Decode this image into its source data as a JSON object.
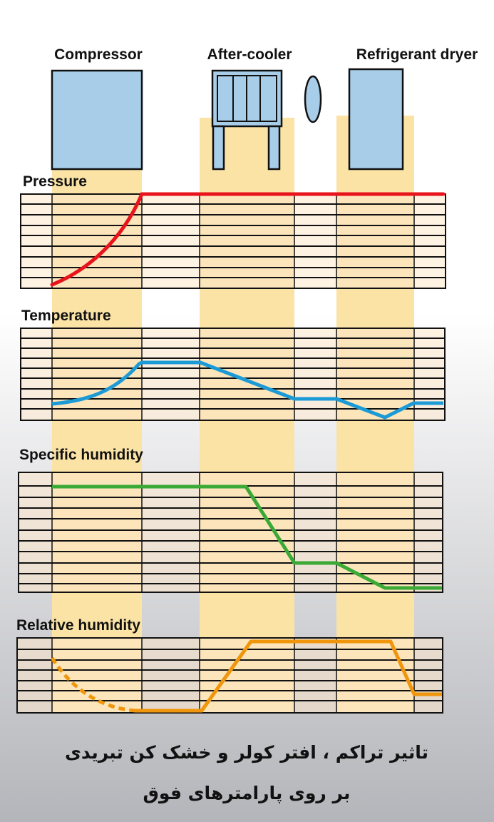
{
  "colors": {
    "background_top": "#ffffff",
    "background_bottom": "#b4b5ba",
    "band": "#fbe3a6",
    "panel": "#fde8cc",
    "device_fill": "#a8cde8",
    "pressure": "#e8141c",
    "temperature": "#1c9ad6",
    "specific_humidity": "#3aa935",
    "relative_humidity": "#f0960c"
  },
  "equipment": [
    {
      "label": "Compressor",
      "icon": "compressor-icon"
    },
    {
      "label": "After-cooler",
      "icon": "after-cooler-icon"
    },
    {
      "label": "Refrigerant dryer",
      "icon": "refrigerant-dryer-icon"
    }
  ],
  "separator_icon": "water-separator-icon",
  "panels": [
    {
      "title": "Pressure",
      "line_style": "solid"
    },
    {
      "title": "Temperature",
      "line_style": "solid"
    },
    {
      "title": "Specific humidity",
      "line_style": "solid"
    },
    {
      "title": "Relative humidity",
      "line_style": "dashed-then-solid"
    }
  ],
  "caption": {
    "line1": "تاثیر تراکم ، افتر کولر  و خشک کن تبریدی",
    "line2": "بر روی پارامترهای فوق"
  }
}
